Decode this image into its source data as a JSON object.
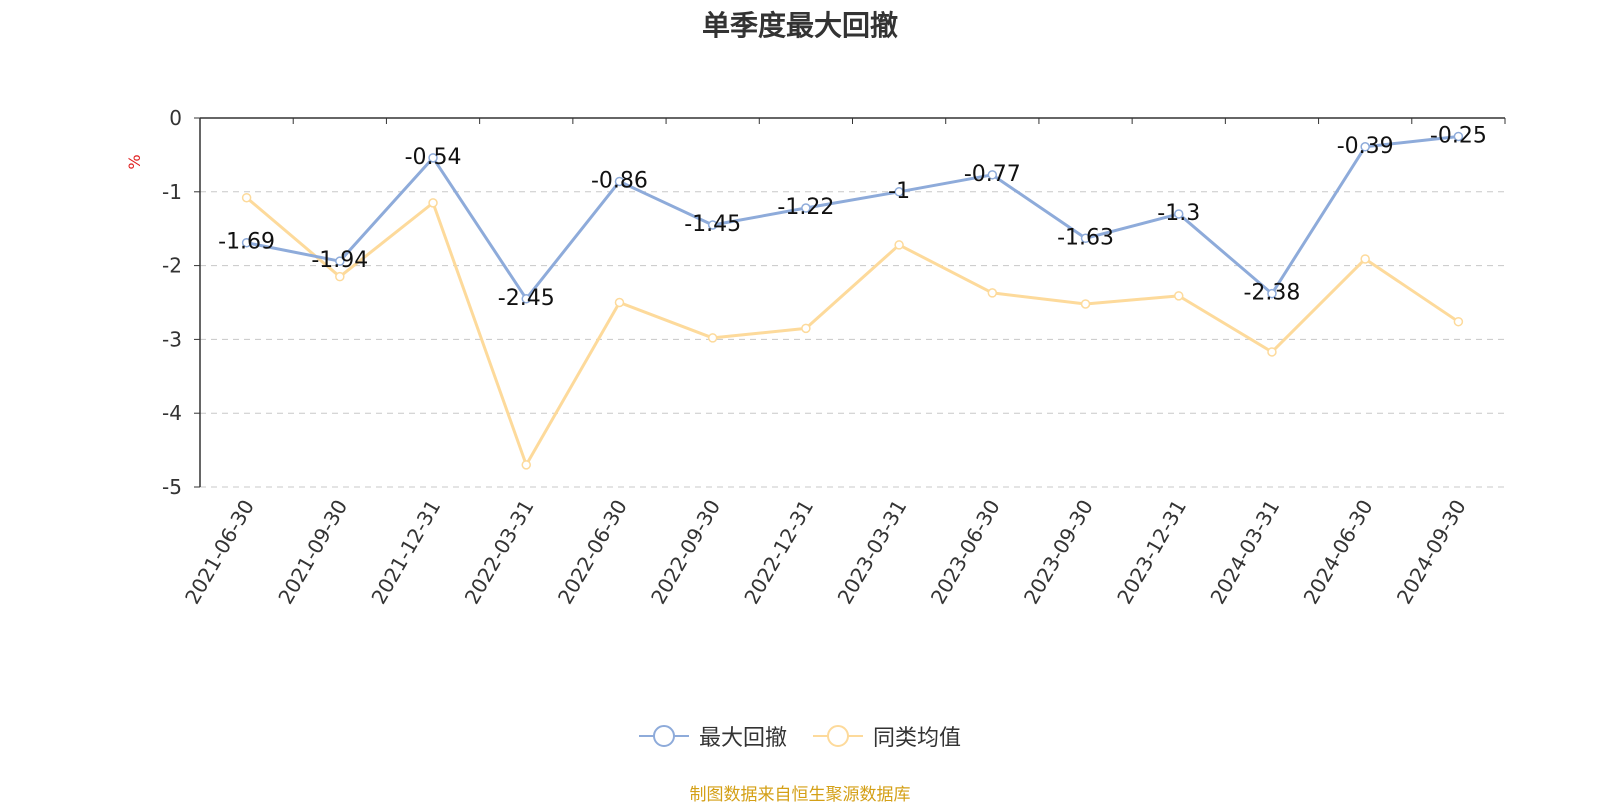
{
  "title": "单季度最大回撤",
  "source": "制图数据来自恒生聚源数据库",
  "colors": {
    "series_1": "#8EABDA",
    "series_2": "#FDDA9B",
    "axis_unit": "#E02020",
    "source": "#D4A017",
    "grid": "#C8C8C8",
    "axis": "#333333"
  },
  "chart_data": {
    "type": "line",
    "title": "单季度最大回撤",
    "ylabel": "%",
    "xlabel": "",
    "ylim": [
      -5,
      0
    ],
    "yticks": [
      0,
      -1,
      -2,
      -3,
      -4,
      -5
    ],
    "grid": "horizontal dashed",
    "legend_position": "bottom",
    "x": [
      "2021-06-30",
      "2021-09-30",
      "2021-12-31",
      "2022-03-31",
      "2022-06-30",
      "2022-09-30",
      "2022-12-31",
      "2023-03-31",
      "2023-06-30",
      "2023-09-30",
      "2023-12-31",
      "2024-03-31",
      "2024-06-30",
      "2024-09-30"
    ],
    "series": [
      {
        "name": "最大回撤",
        "values": [
          -1.69,
          -1.94,
          -0.54,
          -2.45,
          -0.86,
          -1.45,
          -1.22,
          -1,
          -0.77,
          -1.63,
          -1.3,
          -2.38,
          -0.39,
          -0.25
        ],
        "data_labels": true
      },
      {
        "name": "同类均值",
        "values": [
          -1.08,
          -2.15,
          -1.15,
          -4.7,
          -2.5,
          -2.98,
          -2.85,
          -1.72,
          -2.37,
          -2.52,
          -2.41,
          -3.17,
          -1.91,
          -2.76
        ],
        "data_labels": false
      }
    ]
  }
}
